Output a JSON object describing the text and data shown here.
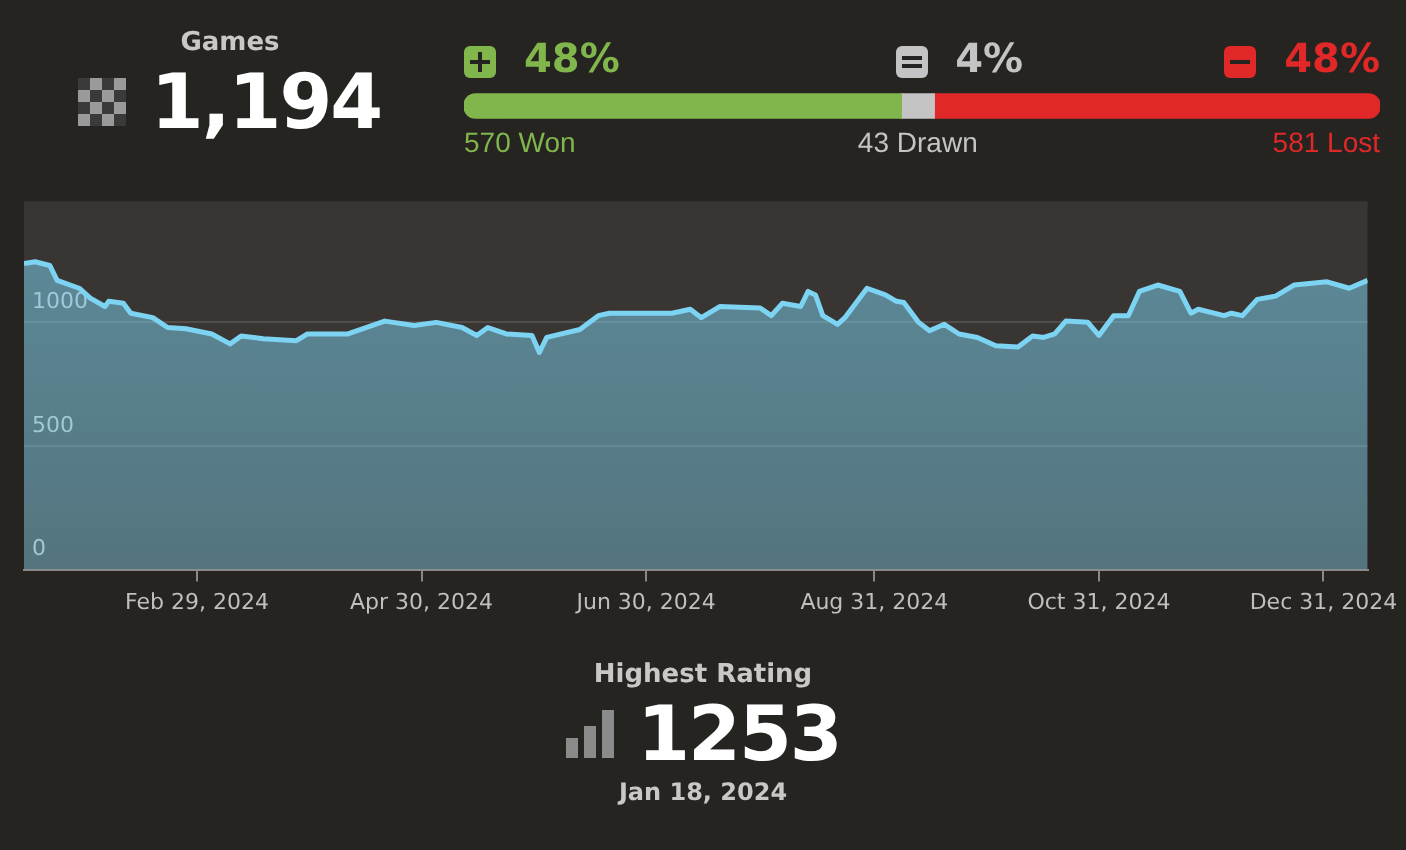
{
  "chart_data": [
    {
      "type": "other",
      "title": "Games",
      "annotations": [
        "1,194"
      ]
    },
    {
      "type": "bar",
      "orientation": "horizontal",
      "stacked": true,
      "categories": [
        null
      ],
      "xlim": [
        0,
        1194
      ],
      "tick_labels": false,
      "series": [
        {
          "color": "#81b64c",
          "values": [
            570
          ],
          "value_labels": [
            "570 Won"
          ]
        },
        {
          "color": "#c4c4c4",
          "values": [
            43
          ],
          "value_labels": [
            "43 Drawn"
          ]
        },
        {
          "color": "#e02828",
          "values": [
            581
          ],
          "value_labels": [
            "581 Lost"
          ]
        }
      ],
      "annotations": [
        "48%",
        "4%",
        "48%"
      ]
    },
    {
      "type": "area",
      "marker": "none",
      "grid": "y",
      "color": "#7dd3f2",
      "xlim": [
        "2024-01-13",
        "2025-01-12"
      ],
      "ylim": [
        0,
        1490
      ],
      "yticks": [
        0,
        500,
        1000
      ],
      "xticks": [
        {
          "value": "2024-02-29",
          "label": "Feb 29, 2024"
        },
        {
          "value": "2024-04-30",
          "label": "Apr 30, 2024"
        },
        {
          "value": "2024-06-30",
          "label": "Jun 30, 2024"
        },
        {
          "value": "2024-08-31",
          "label": "Aug 31, 2024"
        },
        {
          "value": "2024-10-31",
          "label": "Oct 31, 2024"
        },
        {
          "value": "2024-12-31",
          "label": "Dec 31, 2024"
        }
      ],
      "x": [
        "2024-01-13",
        "2024-01-16",
        "2024-01-20",
        "2024-01-22",
        "2024-01-28",
        "2024-01-31",
        "2024-02-04",
        "2024-02-05",
        "2024-02-09",
        "2024-02-11",
        "2024-02-17",
        "2024-02-21",
        "2024-02-26",
        "2024-03-04",
        "2024-03-09",
        "2024-03-12",
        "2024-03-18",
        "2024-03-27",
        "2024-03-30",
        "2024-04-10",
        "2024-04-20",
        "2024-04-28",
        "2024-05-04",
        "2024-05-11",
        "2024-05-15",
        "2024-05-18",
        "2024-05-23",
        "2024-05-30",
        "2024-06-01",
        "2024-06-03",
        "2024-06-12",
        "2024-06-17",
        "2024-06-20",
        "2024-07-07",
        "2024-07-12",
        "2024-07-15",
        "2024-07-20",
        "2024-07-31",
        "2024-08-03",
        "2024-08-06",
        "2024-08-11",
        "2024-08-13",
        "2024-08-15",
        "2024-08-17",
        "2024-08-21",
        "2024-08-23",
        "2024-08-29",
        "2024-09-03",
        "2024-09-06",
        "2024-09-08",
        "2024-09-12",
        "2024-09-15",
        "2024-09-19",
        "2024-09-23",
        "2024-09-28",
        "2024-10-03",
        "2024-10-09",
        "2024-10-13",
        "2024-10-16",
        "2024-10-19",
        "2024-10-22",
        "2024-10-28",
        "2024-10-31",
        "2024-11-04",
        "2024-11-08",
        "2024-11-11",
        "2024-11-16",
        "2024-11-22",
        "2024-11-25",
        "2024-11-27",
        "2024-12-04",
        "2024-12-06",
        "2024-12-09",
        "2024-12-13",
        "2024-12-18",
        "2024-12-23",
        "2025-01-01",
        "2025-01-07",
        "2025-01-12"
      ],
      "values": [
        1238,
        1245,
        1230,
        1170,
        1138,
        1098,
        1064,
        1085,
        1077,
        1037,
        1019,
        979,
        974,
        953,
        913,
        945,
        934,
        926,
        953,
        953,
        1005,
        987,
        1000,
        979,
        947,
        979,
        953,
        947,
        878,
        939,
        971,
        1027,
        1037,
        1037,
        1053,
        1019,
        1064,
        1058,
        1027,
        1077,
        1064,
        1125,
        1111,
        1027,
        992,
        1019,
        1138,
        1111,
        1085,
        1080,
        1000,
        966,
        992,
        953,
        939,
        905,
        900,
        945,
        939,
        953,
        1005,
        1000,
        947,
        1027,
        1027,
        1125,
        1151,
        1125,
        1037,
        1053,
        1027,
        1037,
        1027,
        1093,
        1106,
        1151,
        1164,
        1138,
        1170
      ]
    },
    {
      "type": "other",
      "title": "Highest Rating",
      "annotations": [
        "1253",
        "Jan 18, 2024"
      ]
    }
  ]
}
